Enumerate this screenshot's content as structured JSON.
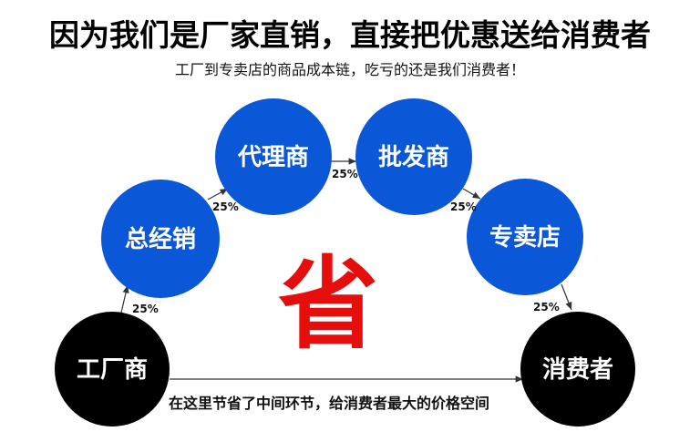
{
  "header": {
    "title": "因为我们是厂家直销，直接把优惠送给消费者",
    "subtitle": "工厂到专卖店的商品成本链，吃亏的还是我们消费者！"
  },
  "nodes": {
    "factory": "工厂商",
    "distributor": "总经销",
    "agent": "代理商",
    "wholesaler": "批发商",
    "store": "专卖店",
    "consumer": "消费者"
  },
  "markups": [
    "25%",
    "25%",
    "25%",
    "25%",
    "25%"
  ],
  "center_text": "省",
  "bottom_text": "在这里节省了中间环节，给消费者最大的价格空间",
  "colors": {
    "blue_node": "#0a57d8",
    "black_node": "#000000",
    "accent": "#e60d0d"
  }
}
